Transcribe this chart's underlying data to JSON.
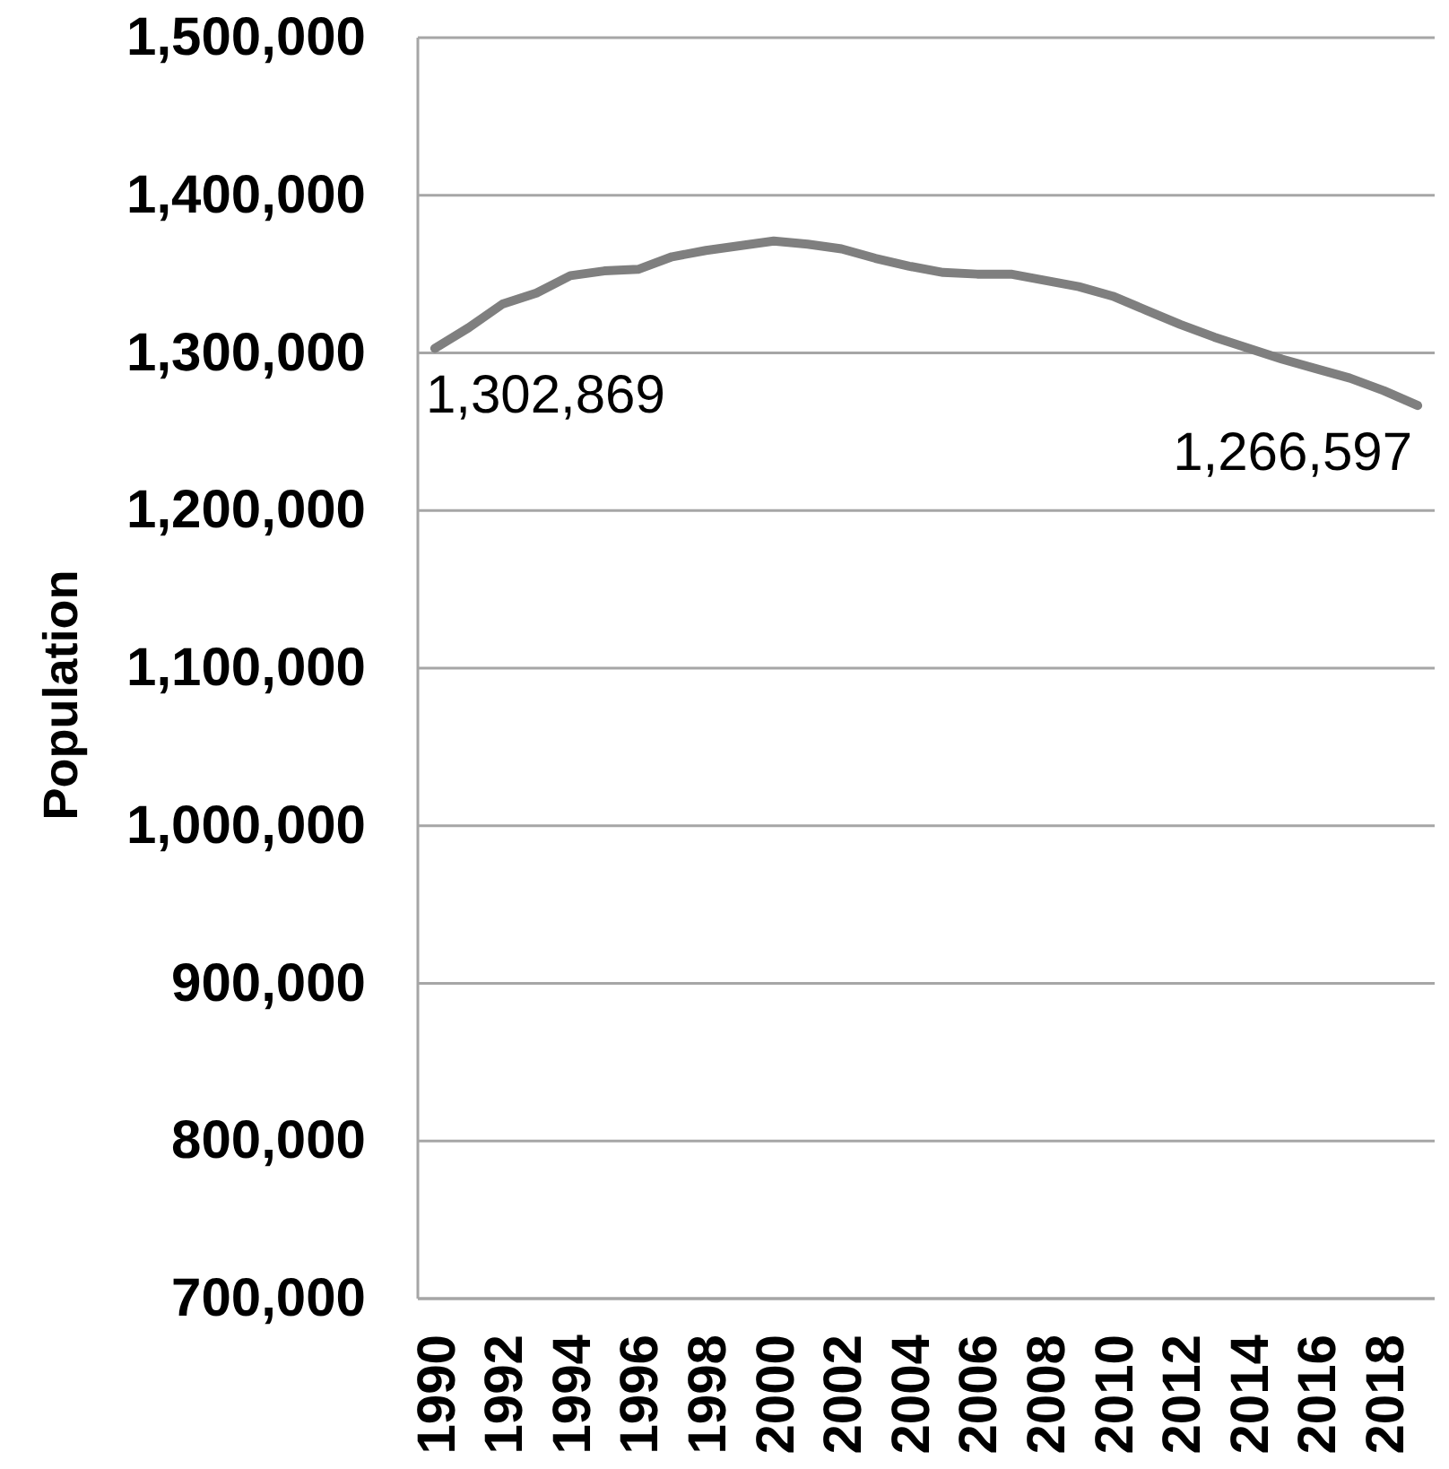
{
  "chart_data": {
    "type": "line",
    "ylabel": "Population",
    "categories": [
      "1990",
      null,
      "1992",
      null,
      "1994",
      null,
      "1996",
      null,
      "1998",
      null,
      "2000",
      null,
      "2002",
      null,
      "2004",
      null,
      "2006",
      null,
      "2008",
      null,
      "2010",
      null,
      "2012",
      null,
      "2014",
      null,
      "2016",
      null,
      "2018",
      null
    ],
    "values": [
      1302869,
      1316000,
      1331000,
      1338000,
      1349000,
      1352000,
      1353000,
      1361000,
      1365000,
      1368000,
      1371000,
      1369000,
      1366000,
      1360000,
      1355000,
      1351000,
      1350000,
      1350000,
      1346000,
      1342000,
      1336000,
      1327000,
      1318000,
      1310000,
      1303000,
      1296000,
      1290000,
      1284000,
      1276000,
      1266597
    ],
    "value_labels": [
      "1,302,869",
      null,
      null,
      null,
      null,
      null,
      null,
      null,
      null,
      null,
      null,
      null,
      null,
      null,
      null,
      null,
      null,
      null,
      null,
      null,
      null,
      null,
      null,
      null,
      null,
      null,
      null,
      null,
      null,
      "1,266,597"
    ],
    "color": "#7f7f7f",
    "ylim": [
      700000,
      1500000
    ],
    "yticks": [
      {
        "value": 700000,
        "label": "700,000"
      },
      {
        "value": 800000,
        "label": "800,000"
      },
      {
        "value": 900000,
        "label": "900,000"
      },
      {
        "value": 1000000,
        "label": "1,000,000"
      },
      {
        "value": 1100000,
        "label": "1,100,000"
      },
      {
        "value": 1200000,
        "label": "1,200,000"
      },
      {
        "value": 1300000,
        "label": "1,300,000"
      },
      {
        "value": 1400000,
        "label": "1,400,000"
      },
      {
        "value": 1500000,
        "label": "1,500,000"
      }
    ],
    "grid": "y"
  }
}
